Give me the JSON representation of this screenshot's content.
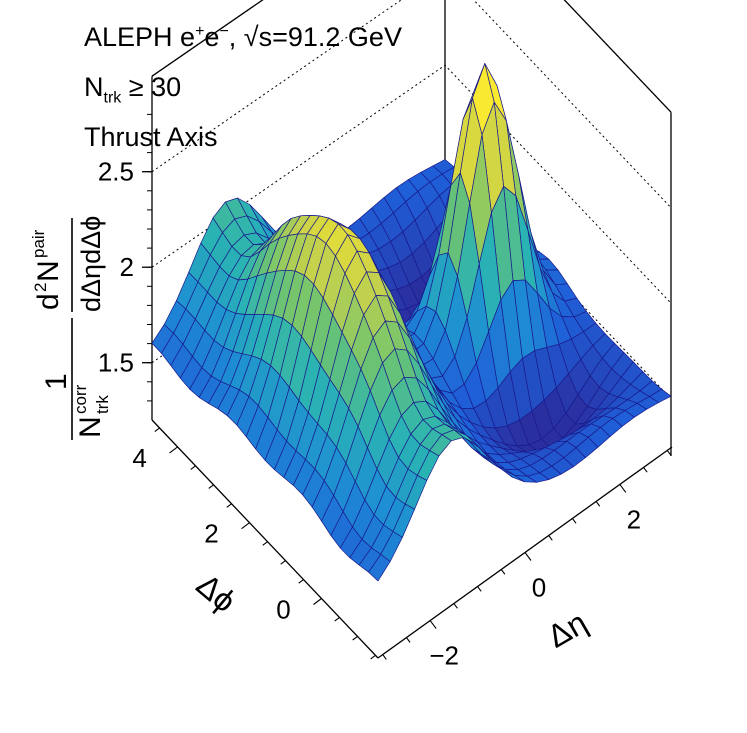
{
  "header": {
    "experiment": "ALEPH e",
    "exp_sup": "+",
    "exp_mid": "e",
    "exp_sup2": "−",
    "energy_label": ",  √s=91.2 GeV",
    "ntrk_base": "N",
    "ntrk_sub": "trk",
    "ntrk_rest": " ≥ 30",
    "axis_label": "Thrust Axis"
  },
  "chart_data": {
    "type": "surface3d",
    "z_axis": {
      "label_num": "1",
      "label_den_base": "N",
      "label_den_sup": "corr",
      "label_den_sub": "trk",
      "deriv_num_base": "d",
      "deriv_num_sup": "2",
      "deriv_num_rest": "N",
      "deriv_num_sup2": "pair",
      "deriv_den": "dΔηdΔϕ",
      "ticks": [
        "1.5",
        "2",
        "2.5"
      ],
      "range": [
        1.2,
        3.0
      ]
    },
    "x_axis": {
      "label": "Δη",
      "ticks": [
        "−2",
        "0",
        "2"
      ],
      "range": [
        -3.1,
        3.1
      ]
    },
    "y_axis": {
      "label": "Δϕ",
      "ticks": [
        "0",
        "2",
        "4"
      ],
      "range": [
        -1.57,
        4.71
      ]
    },
    "grid": {
      "nx": 24,
      "ny": 24
    },
    "features": {
      "baseline": 1.52,
      "near_side_peak": {
        "eta": 0.0,
        "phi": 0.0,
        "height": 2.9
      },
      "away_side_ridge": {
        "phi": 3.14,
        "height": 2.85
      },
      "dips": [
        "Δη≈±1.5 near Δϕ≈0",
        "Δη≈±2 near Δϕ≈π"
      ]
    },
    "colormap": [
      "#2a2fa0",
      "#1f5fd8",
      "#1e8fd3",
      "#2ab3b3",
      "#6fc46f",
      "#c8d24a",
      "#f6e52c",
      "#fff33a"
    ]
  }
}
